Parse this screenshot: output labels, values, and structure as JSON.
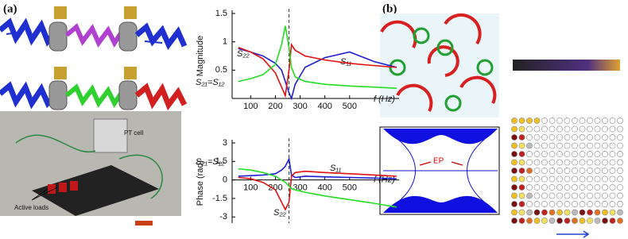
{
  "panel_labels": [
    "(a)",
    "(b)"
  ],
  "photo_labels": {
    "pt_cell": "PT cell",
    "active_loads": "Active loads"
  },
  "ep_label": "EP",
  "chart_data": [
    {
      "type": "line",
      "y_label": "Magnitude",
      "x_label": "f (Hz)",
      "x": [
        50,
        100,
        150,
        200,
        225,
        240,
        255,
        265,
        280,
        320,
        400,
        500,
        600,
        690
      ],
      "xlim": [
        25,
        700
      ],
      "xticks": [
        100,
        200,
        300,
        400,
        500
      ],
      "ylim": [
        0,
        1.5
      ],
      "yticks": [
        0.5,
        1,
        1.5
      ],
      "vline": 255,
      "series": [
        {
          "name": "S₁₁",
          "color": "#1f1fd6",
          "values": [
            0.88,
            0.82,
            0.75,
            0.62,
            0.5,
            0.3,
            0.1,
            0.0,
            0.25,
            0.55,
            0.72,
            0.82,
            0.65,
            0.55
          ]
        },
        {
          "name": "S₂₂",
          "color": "#e01010",
          "values": [
            0.9,
            0.82,
            0.7,
            0.45,
            0.2,
            0.05,
            0.5,
            0.95,
            0.85,
            0.75,
            0.68,
            0.62,
            0.58,
            0.55
          ]
        },
        {
          "name": "S₂₁=S₁₂",
          "color": "#22dd22",
          "values": [
            0.3,
            0.35,
            0.42,
            0.6,
            0.95,
            1.28,
            0.9,
            0.55,
            0.38,
            0.3,
            0.25,
            0.22,
            0.2,
            0.18
          ]
        }
      ]
    },
    {
      "type": "line",
      "y_label": "Phase (rad)",
      "x_label": "f (Hz)",
      "x": [
        50,
        100,
        150,
        200,
        225,
        240,
        255,
        265,
        280,
        320,
        400,
        500,
        600,
        690
      ],
      "xlim": [
        25,
        700
      ],
      "xticks": [
        100,
        200,
        300,
        400,
        500
      ],
      "ylim": [
        -3.5,
        3
      ],
      "yticks": [
        -3,
        -1.5,
        0,
        1.5,
        3
      ],
      "vline": 255,
      "series": [
        {
          "name": "S₁₁",
          "color": "#1f1fd6",
          "values": [
            0.3,
            0.35,
            0.4,
            0.5,
            0.8,
            1.1,
            1.7,
            0.4,
            0.2,
            0.3,
            0.25,
            0.2,
            0.15,
            0.1
          ]
        },
        {
          "name": "S₂₂",
          "color": "#e01010",
          "values": [
            0.2,
            0.1,
            -0.2,
            -0.8,
            -1.8,
            -2.4,
            -1.8,
            0.3,
            0.6,
            0.7,
            0.6,
            0.5,
            0.4,
            0.3
          ]
        },
        {
          "name": "S₂₁=S₁₂",
          "color": "#22dd22",
          "values": [
            0.9,
            0.8,
            0.6,
            0.3,
            0.0,
            -0.2,
            -0.5,
            -0.7,
            -0.8,
            -1.0,
            -1.3,
            -1.6,
            -1.9,
            -2.2
          ]
        }
      ]
    }
  ]
}
